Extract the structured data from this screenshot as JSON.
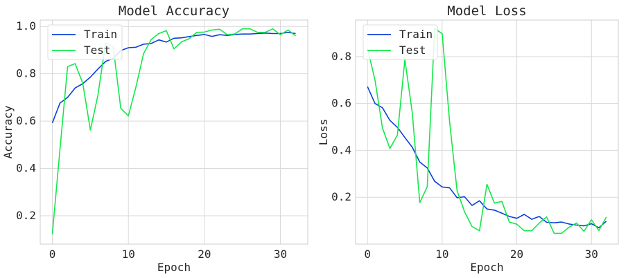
{
  "chart_data": [
    {
      "type": "line",
      "title": "Model Accuracy",
      "xlabel": "Epoch",
      "ylabel": "Accuracy",
      "xlim": [
        -1.6,
        33.6
      ],
      "ylim": [
        0.08,
        1.027
      ],
      "xticks": [
        0,
        10,
        20,
        30
      ],
      "yticks": [
        0.2,
        0.4,
        0.6,
        0.8,
        1.0
      ],
      "ytick_labels": [
        "0.2",
        "0.4",
        "0.6",
        "0.8",
        "1.0"
      ],
      "grid": true,
      "legend_position": "upper-left",
      "x": [
        0,
        1,
        2,
        3,
        4,
        5,
        6,
        7,
        8,
        9,
        10,
        11,
        12,
        13,
        14,
        15,
        16,
        17,
        18,
        19,
        20,
        21,
        22,
        23,
        24,
        25,
        26,
        27,
        28,
        29,
        30,
        31,
        32
      ],
      "series": [
        {
          "name": "Train",
          "color": "#0b3fd8",
          "values": [
            0.592,
            0.676,
            0.7,
            0.74,
            0.758,
            0.786,
            0.82,
            0.852,
            0.865,
            0.898,
            0.91,
            0.912,
            0.925,
            0.928,
            0.943,
            0.934,
            0.95,
            0.952,
            0.957,
            0.962,
            0.966,
            0.958,
            0.965,
            0.962,
            0.966,
            0.968,
            0.968,
            0.97,
            0.972,
            0.97,
            0.97,
            0.975,
            0.97
          ]
        },
        {
          "name": "Test",
          "color": "#13e84a",
          "values": [
            0.122,
            0.48,
            0.83,
            0.843,
            0.76,
            0.562,
            0.71,
            0.93,
            0.915,
            0.654,
            0.622,
            0.745,
            0.885,
            0.945,
            0.97,
            0.982,
            0.905,
            0.935,
            0.948,
            0.975,
            0.976,
            0.985,
            0.988,
            0.965,
            0.968,
            0.99,
            0.99,
            0.975,
            0.975,
            0.99,
            0.965,
            0.985,
            0.96
          ]
        }
      ]
    },
    {
      "type": "line",
      "title": "Model Loss",
      "xlabel": "Epoch",
      "ylabel": "Loss",
      "xlim": [
        -1.6,
        33.6
      ],
      "ylim": [
        0.0,
        0.956
      ],
      "xticks": [
        0,
        10,
        20,
        30
      ],
      "yticks": [
        0.2,
        0.4,
        0.6,
        0.8
      ],
      "ytick_labels": [
        "0.2",
        "0.4",
        "0.6",
        "0.8"
      ],
      "grid": true,
      "legend_position": "upper-left",
      "x": [
        0,
        1,
        2,
        3,
        4,
        5,
        6,
        7,
        8,
        9,
        10,
        11,
        12,
        13,
        14,
        15,
        16,
        17,
        18,
        19,
        20,
        21,
        22,
        23,
        24,
        25,
        26,
        27,
        28,
        29,
        30,
        31,
        32
      ],
      "series": [
        {
          "name": "Train",
          "color": "#0b3fd8",
          "values": [
            0.672,
            0.6,
            0.582,
            0.528,
            0.498,
            0.455,
            0.413,
            0.35,
            0.325,
            0.268,
            0.244,
            0.24,
            0.198,
            0.202,
            0.165,
            0.185,
            0.15,
            0.145,
            0.132,
            0.118,
            0.11,
            0.127,
            0.106,
            0.118,
            0.093,
            0.091,
            0.094,
            0.086,
            0.081,
            0.078,
            0.087,
            0.07,
            0.098
          ]
        },
        {
          "name": "Test",
          "color": "#13e84a",
          "values": [
            0.835,
            0.7,
            0.495,
            0.408,
            0.465,
            0.788,
            0.56,
            0.177,
            0.245,
            0.92,
            0.898,
            0.52,
            0.228,
            0.138,
            0.075,
            0.057,
            0.255,
            0.175,
            0.182,
            0.094,
            0.085,
            0.057,
            0.057,
            0.09,
            0.116,
            0.046,
            0.046,
            0.072,
            0.09,
            0.055,
            0.104,
            0.058,
            0.116
          ]
        }
      ]
    }
  ]
}
